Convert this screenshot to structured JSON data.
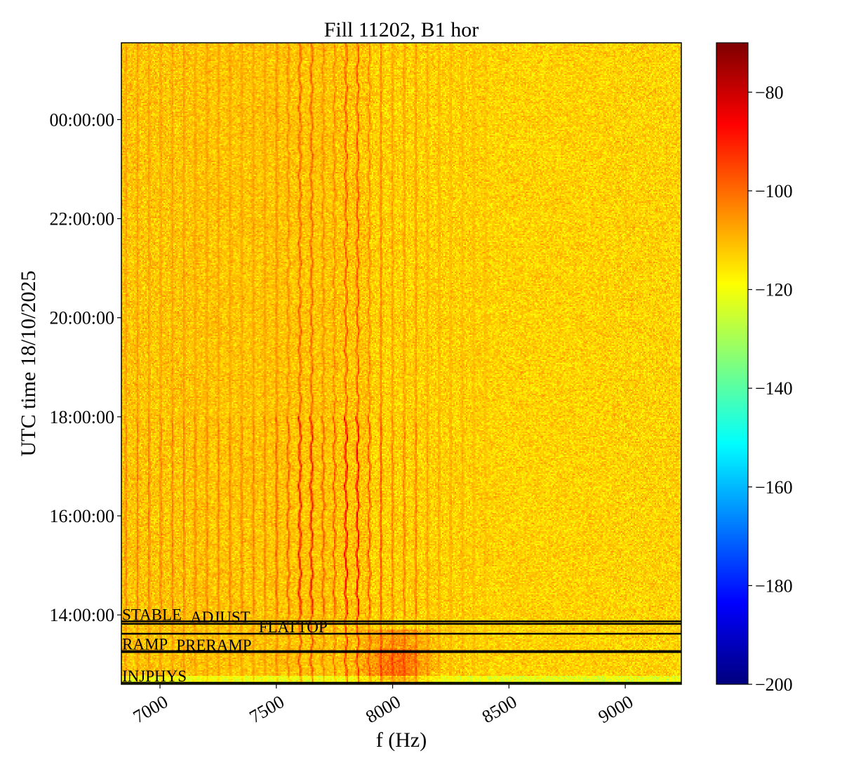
{
  "chart_data": {
    "type": "heatmap",
    "title": "Fill 11202, B1 hor",
    "xlabel": "f (Hz)",
    "ylabel": "UTC time 18/10/2025",
    "xlim": [
      6834,
      9241
    ],
    "ylim_hours": [
      12.6,
      25.55
    ],
    "xticks": [
      {
        "value": 7000,
        "label": "7000"
      },
      {
        "value": 7500,
        "label": "7500"
      },
      {
        "value": 8000,
        "label": "8000"
      },
      {
        "value": 8500,
        "label": "8500"
      },
      {
        "value": 9000,
        "label": "9000"
      }
    ],
    "yticks": [
      {
        "value": 14,
        "label": "14:00:00"
      },
      {
        "value": 16,
        "label": "16:00:00"
      },
      {
        "value": 18,
        "label": "18:00:00"
      },
      {
        "value": 20,
        "label": "20:00:00"
      },
      {
        "value": 22,
        "label": "22:00:00"
      },
      {
        "value": 24,
        "label": "00:00:00"
      }
    ],
    "colormap": "jet",
    "colorbar": {
      "range": [
        -200,
        -70
      ],
      "ticks": [
        {
          "value": -80,
          "label": "−80"
        },
        {
          "value": -100,
          "label": "−100"
        },
        {
          "value": -120,
          "label": "−120"
        },
        {
          "value": -140,
          "label": "−140"
        },
        {
          "value": -160,
          "label": "−160"
        },
        {
          "value": -180,
          "label": "−180"
        },
        {
          "value": -200,
          "label": "−200"
        }
      ]
    },
    "background_level": -113,
    "harmonic_lines_hz": [
      6850,
      6900,
      6950,
      7000,
      7050,
      7100,
      7150,
      7200,
      7250,
      7300,
      7350,
      7400,
      7450,
      7500,
      7550,
      7600,
      7650,
      7700,
      7750,
      7800,
      7850,
      7900,
      7950,
      8000,
      8050,
      8100,
      8150,
      8200,
      8250,
      8300,
      8350,
      8400
    ],
    "strongest_lines_hz": [
      7600,
      7650,
      7800,
      7850
    ],
    "beam_modes": [
      {
        "label": "STABLE",
        "time_hours": 13.87
      },
      {
        "label": "ADJUST",
        "time_hours": 13.82
      },
      {
        "label": "FLATTOP",
        "time_hours": 13.62
      },
      {
        "label": "RAMP",
        "time_hours": 13.27
      },
      {
        "label": "PRERAMP",
        "time_hours": 13.25
      },
      {
        "label": "INJPHYS",
        "time_hours": 12.63
      }
    ]
  }
}
